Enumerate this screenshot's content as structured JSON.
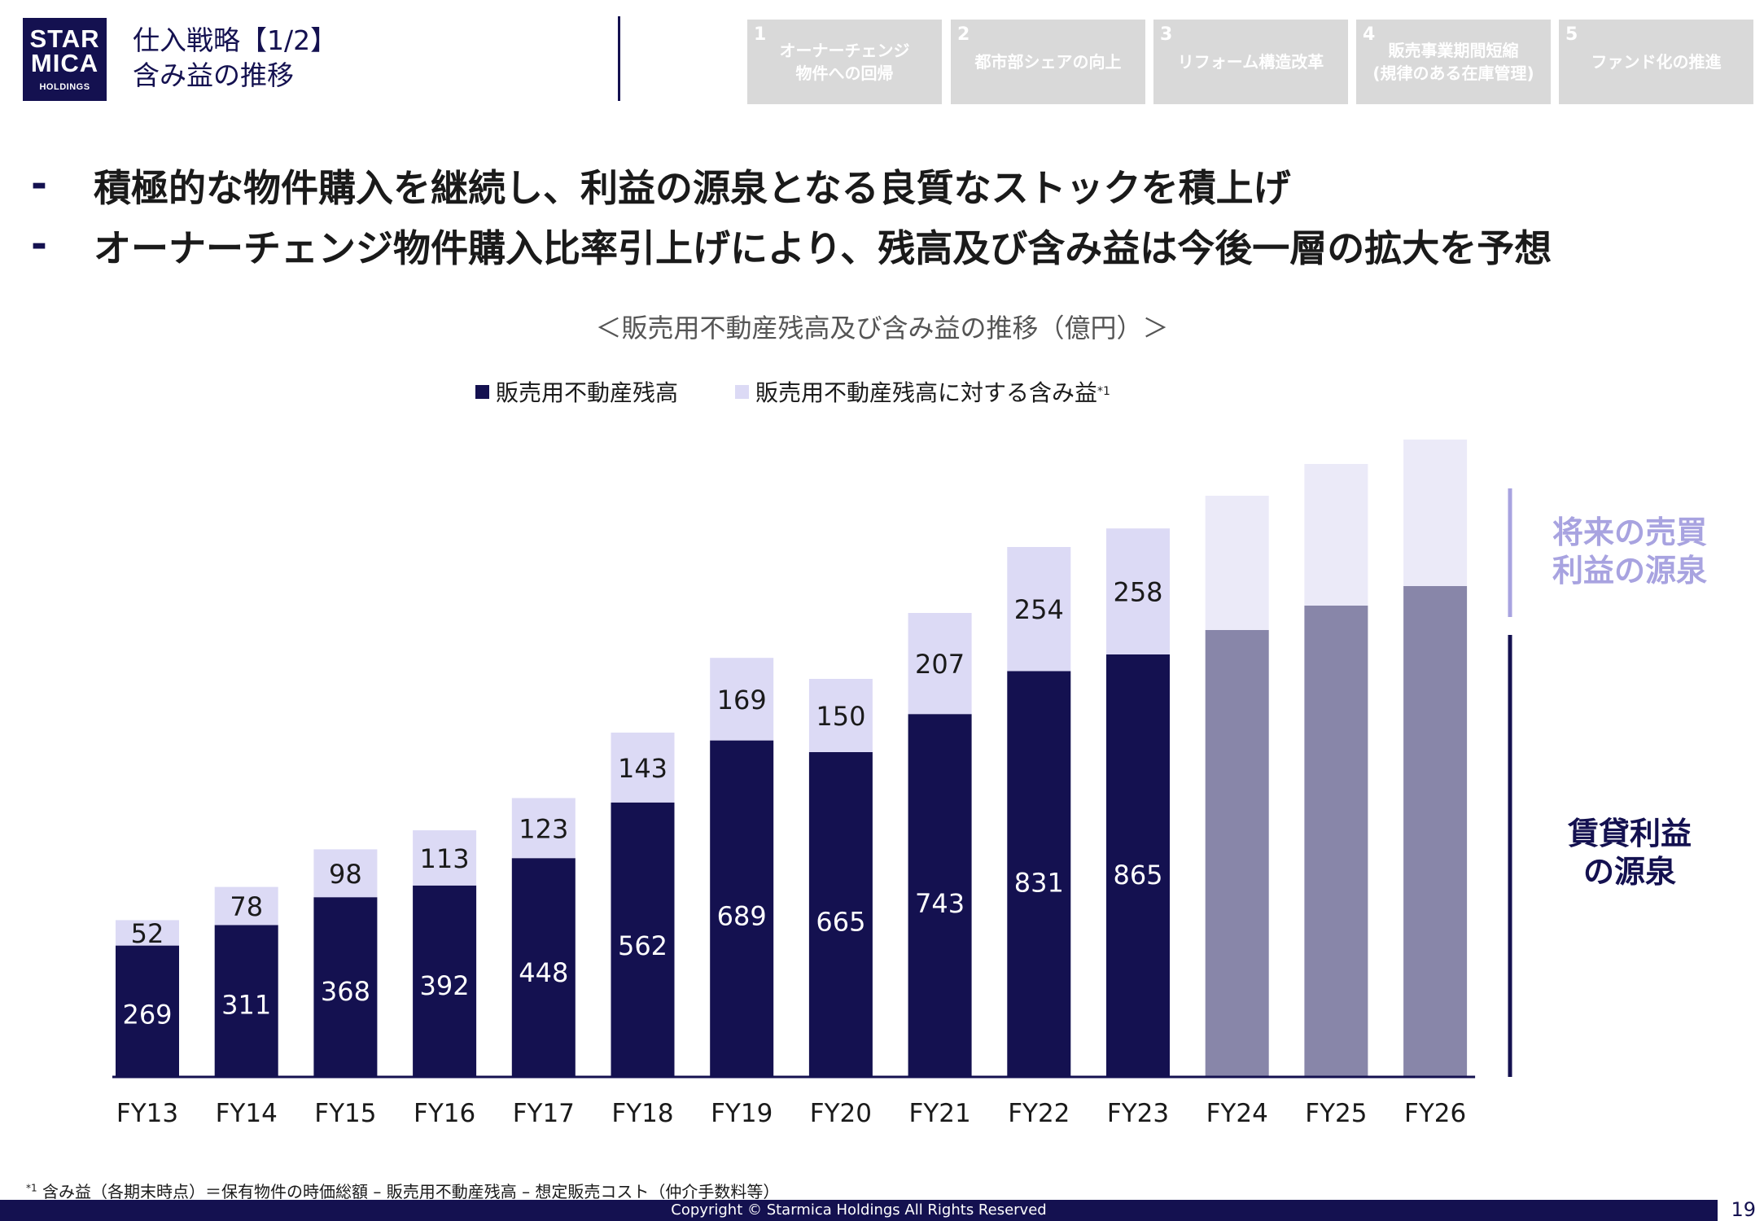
{
  "logo": {
    "line1": "STAR",
    "line2": "MICA",
    "line3": "HOLDINGS"
  },
  "page": {
    "title_line1": "仕入戦略【1/2】",
    "title_line2": "含み益の推移",
    "page_number": "19"
  },
  "tabs": [
    {
      "num": "1",
      "label": "オーナーチェンジ\n物件への回帰",
      "active": true
    },
    {
      "num": "2",
      "label": "都市部シェアの向上",
      "active": false
    },
    {
      "num": "3",
      "label": "リフォーム構造改革",
      "active": false
    },
    {
      "num": "4",
      "label": "販売事業期間短縮\n(規律のある在庫管理)",
      "active": false
    },
    {
      "num": "5",
      "label": "ファンド化の推進",
      "active": false
    }
  ],
  "bullets": [
    {
      "mark": "-",
      "text": "積極的な物件購入を継続し、利益の源泉となる良質なストックを積上げ"
    },
    {
      "mark": "-",
      "text": "オーナーチェンジ物件購入比率引上げにより、残高及び含み益は今後一層の拡大を予想"
    }
  ],
  "side_labels": {
    "future": "将来の売買\n利益の源泉",
    "rental": "賃貸利益\nの源泉"
  },
  "footnote": {
    "mark": "*1",
    "text": "含み益（各期末時点）＝保有物件の時価総額 – 販売用不動産残高 – 想定販売コスト（仲介手数料等）"
  },
  "footer": {
    "copyright": "Copyright © Starmica Holdings All Rights Reserved"
  },
  "colors": {
    "navy": "#141150",
    "lavender": "#dcdaf5",
    "proj_dark": "#8886a9",
    "proj_light": "#ebeaf8",
    "side_future": "#a8a3e0"
  },
  "chart_data": {
    "type": "bar",
    "stacked": true,
    "title": "＜販売用不動産残高及び含み益の推移（億円）＞",
    "categories": [
      "FY13",
      "FY14",
      "FY15",
      "FY16",
      "FY17",
      "FY18",
      "FY19",
      "FY20",
      "FY21",
      "FY22",
      "FY23",
      "FY24",
      "FY25",
      "FY26"
    ],
    "series": [
      {
        "name": "販売用不動産残高",
        "values": [
          269,
          311,
          368,
          392,
          448,
          562,
          689,
          665,
          743,
          831,
          865,
          915,
          965,
          1005
        ],
        "labeled": [
          true,
          true,
          true,
          true,
          true,
          true,
          true,
          true,
          true,
          true,
          true,
          false,
          false,
          false
        ]
      },
      {
        "name": "販売用不動産残高に対する含み益",
        "values": [
          52,
          78,
          98,
          113,
          123,
          143,
          169,
          150,
          207,
          254,
          258,
          275,
          290,
          300
        ],
        "labeled": [
          true,
          true,
          true,
          true,
          true,
          true,
          true,
          true,
          true,
          true,
          true,
          false,
          false,
          false
        ]
      }
    ],
    "legend_note": "*1",
    "projected_from": "FY24",
    "ylim": [
      0,
      1320
    ],
    "grid": false,
    "legend_position": "top-center"
  }
}
